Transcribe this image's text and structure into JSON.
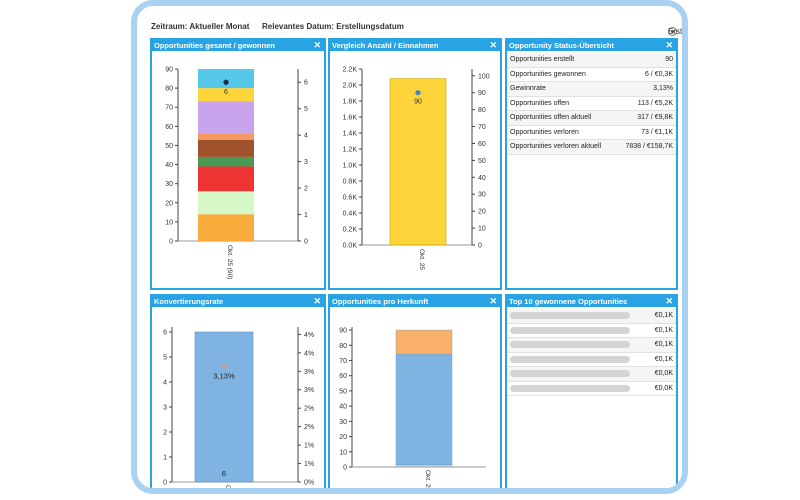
{
  "header": {
    "zeitraum": "Zeitraum: Aktueller Monat",
    "relevantes_datum": "Relevantes Datum: Erstellungsdatum",
    "radio_label": "Erstellungsdatum"
  },
  "panels": {
    "p1": {
      "title": "Opportunities gesamt / gewonnen",
      "close": "✕"
    },
    "p2": {
      "title": "Vergleich Anzahl / Einnahmen",
      "close": "✕"
    },
    "p3": {
      "title": "Opportunity Status-Übersicht",
      "close": "✕"
    },
    "p4": {
      "title": "Konvertierungsrate",
      "close": "✕"
    },
    "p5": {
      "title": "Opportunities pro Herkunft",
      "close": "✕"
    },
    "p6": {
      "title": "Top 10 gewonnene Opportunities",
      "close": "✕"
    }
  },
  "status_table": [
    {
      "label": "Opportunities erstellt",
      "value": "90"
    },
    {
      "label": "Opportunities gewonnen",
      "value": "6 / €0,3K"
    },
    {
      "label": "Gewinnrate",
      "value": "3,13%"
    },
    {
      "label": "Opportunities offen",
      "value": "113 / €5,2K"
    },
    {
      "label": "Opportunities offen aktuell",
      "value": "317 / €9,8K"
    },
    {
      "label": "Opportunities verloren",
      "value": "73 / €1,1K"
    },
    {
      "label": "Opportunities verloren aktuell",
      "value": "7838 / €158,7K"
    }
  ],
  "top10": [
    {
      "value": "€0,1K"
    },
    {
      "value": "€0,1K"
    },
    {
      "value": "€0,1K"
    },
    {
      "value": "€0,1K"
    },
    {
      "value": "€0,0K"
    },
    {
      "value": "€0,0K"
    }
  ],
  "chart_data": [
    {
      "type": "bar",
      "stacked": true,
      "categories": [
        "Okt. 25 (90)"
      ],
      "y_left_ticks": [
        "0",
        "10",
        "20",
        "30",
        "40",
        "50",
        "60",
        "70",
        "80",
        "90"
      ],
      "y_left_range": [
        0,
        90
      ],
      "y_right_ticks": [
        "0",
        "1",
        "2",
        "3",
        "4",
        "5",
        "6"
      ],
      "y_right_range": [
        0,
        6.5
      ],
      "segments": [
        {
          "value": 14,
          "color": "#f9ab3c"
        },
        {
          "value": 12,
          "color": "#d6f7c6"
        },
        {
          "value": 13,
          "color": "#ee3333"
        },
        {
          "value": 5,
          "color": "#4a9a55"
        },
        {
          "value": 9,
          "color": "#a0522d"
        },
        {
          "value": 3,
          "color": "#f49a62"
        },
        {
          "value": 17,
          "color": "#c9a3ee"
        },
        {
          "value": 7,
          "color": "#fdd43a"
        },
        {
          "value": 10,
          "color": "#55c8ea"
        }
      ],
      "point": {
        "value": 6,
        "label": "6"
      }
    },
    {
      "type": "bar",
      "categories": [
        "Okt. 25"
      ],
      "y_left_ticks": [
        "0.0K",
        "0.2K",
        "0.4K",
        "0.6K",
        "0.8K",
        "1.0K",
        "1.2K",
        "1.4K",
        "1.6K",
        "1.8K",
        "2.0K",
        "2.2K"
      ],
      "y_left_range": [
        0,
        2200
      ],
      "y_right_ticks": [
        "0",
        "10",
        "20",
        "30",
        "40",
        "50",
        "60",
        "70",
        "80",
        "90",
        "100"
      ],
      "y_right_range": [
        0,
        104
      ],
      "values": [
        2080
      ],
      "bar_color": "#fdd43a",
      "point": {
        "value": 90,
        "label": "90"
      }
    },
    {
      "type": "bar",
      "categories": [
        "Okt. 25"
      ],
      "y_left_ticks": [
        "0",
        "1",
        "2",
        "3",
        "4",
        "5",
        "6"
      ],
      "y_left_range": [
        0,
        6.2
      ],
      "y_right_ticks": [
        "0%",
        "1%",
        "1%",
        "2%",
        "2%",
        "3%",
        "3%",
        "4%",
        "4%"
      ],
      "y_right_range": [
        0,
        4.2
      ],
      "values": [
        6
      ],
      "value_label": "6",
      "bar_color": "#7fb4e2",
      "point": {
        "value": 3.13,
        "label": "3,13%"
      }
    },
    {
      "type": "bar",
      "stacked": true,
      "categories": [
        "Okt. 25"
      ],
      "y_left_ticks": [
        "0",
        "10",
        "20",
        "30",
        "40",
        "50",
        "60",
        "70",
        "80",
        "90"
      ],
      "y_left_range": [
        0,
        92
      ],
      "segments": [
        {
          "value": 1.5,
          "color": "#c8c8c8"
        },
        {
          "value": 72.5,
          "color": "#7fb4e2"
        },
        {
          "value": 16,
          "color": "#f9b06a"
        }
      ]
    }
  ]
}
